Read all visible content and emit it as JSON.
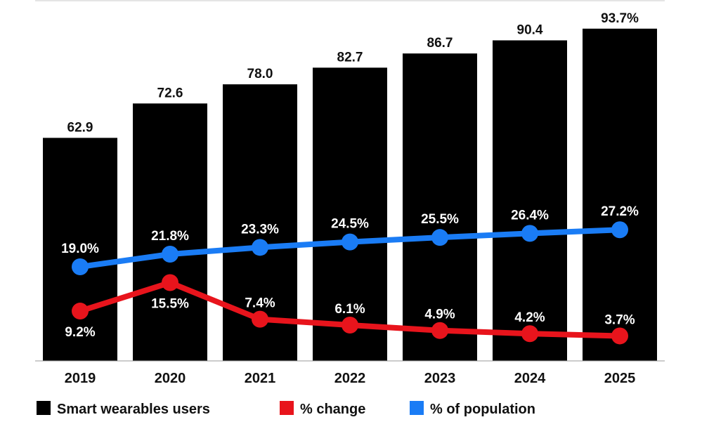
{
  "chart_data": {
    "type": "bar",
    "categories": [
      "2019",
      "2020",
      "2021",
      "2022",
      "2023",
      "2024",
      "2025"
    ],
    "bar_labels": [
      "62.9",
      "72.6",
      "78.0",
      "82.7",
      "86.7",
      "90.4",
      "93.7%"
    ],
    "series": [
      {
        "name": "Smart wearables users",
        "type": "bar",
        "color": "#000000",
        "values": [
          62.9,
          72.6,
          78.0,
          82.7,
          86.7,
          90.4,
          93.7
        ]
      },
      {
        "name": "% change",
        "type": "line",
        "color": "#e8141c",
        "values": [
          9.2,
          15.5,
          7.4,
          6.1,
          4.9,
          4.2,
          3.7
        ],
        "labels": [
          "9.2%",
          "15.5%",
          "7.4%",
          "6.1%",
          "4.9%",
          "4.2%",
          "3.7%"
        ]
      },
      {
        "name": "% of population",
        "type": "line",
        "color": "#1a7cf5",
        "values": [
          19.0,
          21.8,
          23.3,
          24.5,
          25.5,
          26.4,
          27.2
        ],
        "labels": [
          "19.0%",
          "21.8%",
          "23.3%",
          "24.5%",
          "25.5%",
          "26.4%",
          "27.2%"
        ]
      }
    ],
    "bar_ylim": [
      0,
      100
    ],
    "line_ylim": [
      -4,
      42
    ],
    "grid": false,
    "legend_position": "bottom"
  }
}
